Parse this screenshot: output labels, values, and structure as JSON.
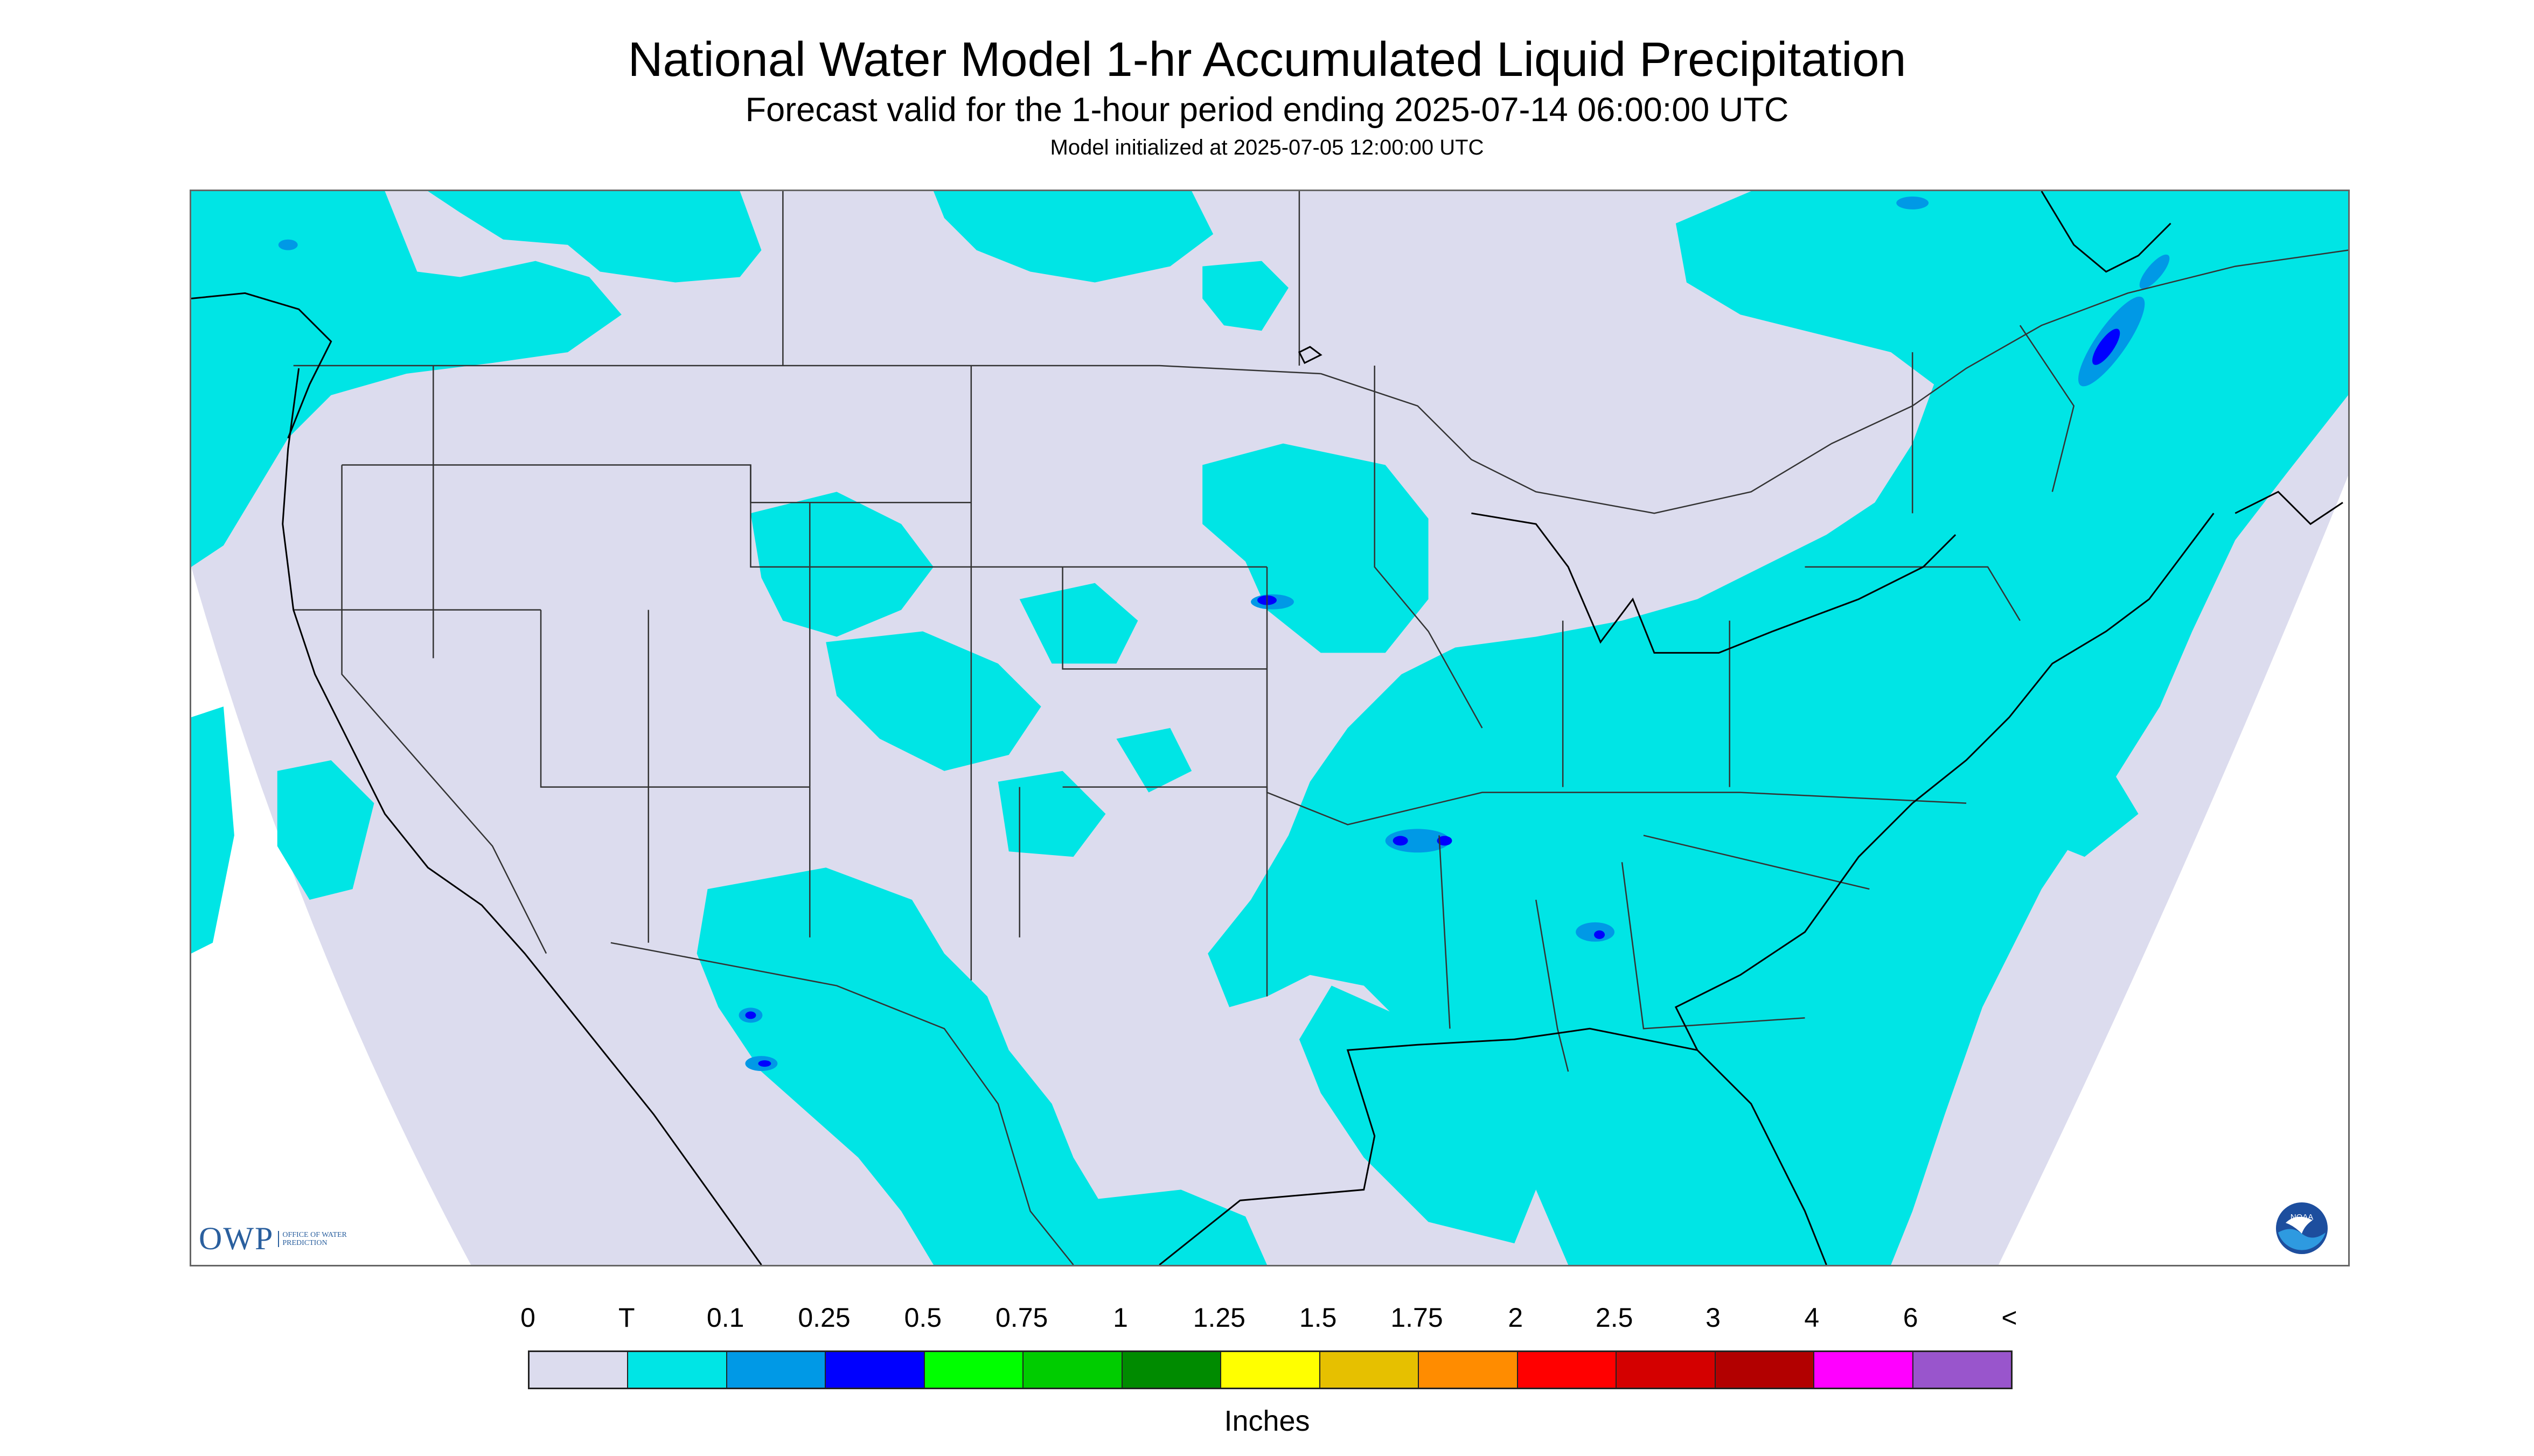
{
  "title": "National Water Model 1-hr Accumulated Liquid Precipitation",
  "subtitle": "Forecast valid for the 1-hour period ending 2025-07-14 06:00:00 UTC",
  "init_line": "Model initialized at 2025-07-05 12:00:00 UTC",
  "logos": {
    "owp_big": "OWP",
    "owp_small": "OFFICE OF WATER PREDICTION",
    "noaa": "NOAA"
  },
  "colors": {
    "background_none": "#dcdcee",
    "trace": "#00e5e5",
    "heavy": "#0000ff",
    "mid": "#0099e6",
    "state_lines": "#333333",
    "frame": "#666666"
  },
  "legend": {
    "labels": [
      "0",
      "T",
      "0.1",
      "0.25",
      "0.5",
      "0.75",
      "1",
      "1.25",
      "1.5",
      "1.75",
      "2",
      "2.5",
      "3",
      "4",
      "6",
      "<"
    ],
    "colors": [
      "#dcdcee",
      "#00e5e5",
      "#0099e6",
      "#0000ff",
      "#00ff00",
      "#00cc00",
      "#008b00",
      "#ffff00",
      "#e6c000",
      "#ff8c00",
      "#ff0000",
      "#d40000",
      "#b20000",
      "#ff00ff",
      "#9955cc"
    ],
    "units": "Inches"
  }
}
